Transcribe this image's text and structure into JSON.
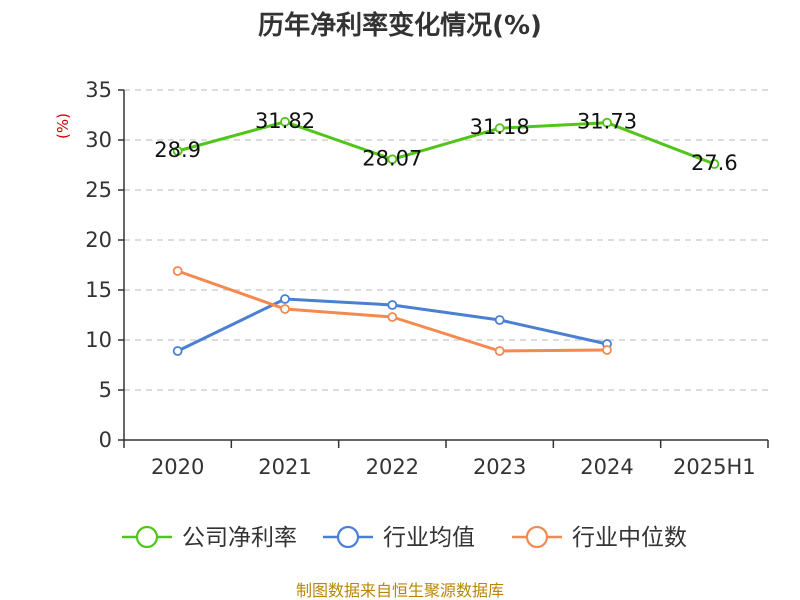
{
  "chart_data": {
    "type": "line",
    "title": "历年净利率变化情况(%)",
    "ylabel": "(%)",
    "categories": [
      "2020",
      "2021",
      "2022",
      "2023",
      "2024",
      "2025H1"
    ],
    "ylim": [
      0,
      35
    ],
    "yticks": [
      0,
      5,
      10,
      15,
      20,
      25,
      30,
      35
    ],
    "grid": true,
    "legend_position": "bottom",
    "series": [
      {
        "name": "公司净利率",
        "color": "#52c41a",
        "values": [
          28.9,
          31.82,
          28.07,
          31.18,
          31.73,
          27.6
        ],
        "labels": [
          "28.9",
          "31.82",
          "28.07",
          "31.18",
          "31.73",
          "27.6"
        ]
      },
      {
        "name": "行业均值",
        "color": "#4a7fd4",
        "values": [
          8.9,
          14.1,
          13.5,
          12.0,
          9.6,
          null
        ]
      },
      {
        "name": "行业中位数",
        "color": "#f5894f",
        "values": [
          16.9,
          13.1,
          12.3,
          8.9,
          9.0,
          null
        ]
      }
    ]
  },
  "source": "制图数据来自恒生聚源数据库"
}
